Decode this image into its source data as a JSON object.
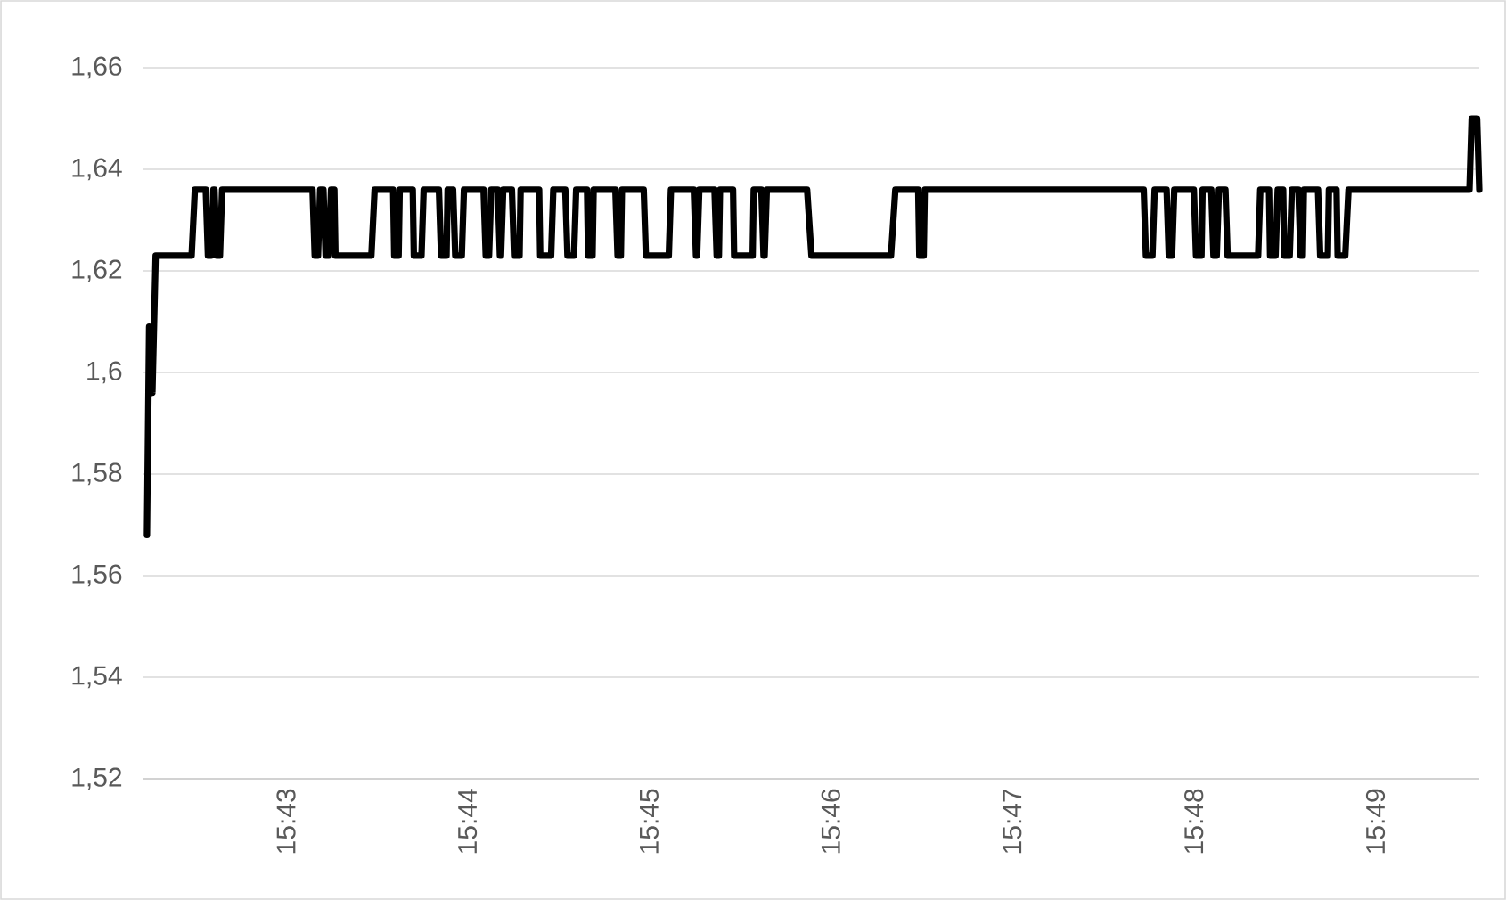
{
  "chart_data": {
    "type": "line",
    "x": [
      15.7039,
      15.7041,
      15.7044,
      15.7047,
      15.708,
      15.7083,
      15.7093,
      15.7095,
      15.7098,
      15.71,
      15.7101,
      15.7103,
      15.7106,
      15.7108,
      15.7191,
      15.7193,
      15.7196,
      15.7198,
      15.7201,
      15.7203,
      15.7206,
      15.7208,
      15.7211,
      15.7212,
      15.7245,
      15.7248,
      15.7265,
      15.7266,
      15.727,
      15.7271,
      15.7283,
      15.7284,
      15.7291,
      15.7293,
      15.7307,
      15.7309,
      15.7314,
      15.7315,
      15.732,
      15.7322,
      15.7328,
      15.733,
      15.7348,
      15.735,
      15.7353,
      15.7355,
      15.7361,
      15.7363,
      15.7364,
      15.7366,
      15.7374,
      15.7376,
      15.7381,
      15.7382,
      15.7399,
      15.74,
      15.741,
      15.7412,
      15.7423,
      15.7425,
      15.7431,
      15.7433,
      15.7443,
      15.7444,
      15.7448,
      15.7449,
      15.7469,
      15.7471,
      15.7474,
      15.7475,
      15.7495,
      15.7497,
      15.7518,
      15.752,
      15.7541,
      15.7543,
      15.7544,
      15.7546,
      15.756,
      15.7562,
      15.7564,
      15.7565,
      15.7577,
      15.7578,
      15.7595,
      15.7596,
      15.7603,
      15.7605,
      15.7606,
      15.7608,
      15.7645,
      15.7649,
      15.7722,
      15.7726,
      15.7747,
      15.7748,
      15.7752,
      15.7753,
      15.7954,
      15.7956,
      15.7962,
      15.7964,
      15.7975,
      15.7977,
      15.798,
      15.7982,
      15.8,
      15.8002,
      15.8007,
      15.8008,
      15.8016,
      15.8018,
      15.8021,
      15.8023,
      15.8029,
      15.8031,
      15.8059,
      15.8061,
      15.8069,
      15.807,
      15.8075,
      15.8077,
      15.8082,
      15.8083,
      15.8088,
      15.809,
      15.8096,
      15.8098,
      15.81,
      15.8101,
      15.8114,
      15.8116,
      15.8123,
      15.8124,
      15.8131,
      15.8132,
      15.8139,
      15.8142,
      15.8253,
      15.8255,
      15.826,
      15.8262
    ],
    "series": [
      {
        "color": "#000000",
        "values": [
          1.568,
          1.609,
          1.596,
          1.623,
          1.623,
          1.636,
          1.636,
          1.623,
          1.623,
          1.636,
          1.636,
          1.623,
          1.623,
          1.636,
          1.636,
          1.623,
          1.623,
          1.636,
          1.636,
          1.623,
          1.623,
          1.636,
          1.636,
          1.623,
          1.623,
          1.636,
          1.636,
          1.623,
          1.623,
          1.636,
          1.636,
          1.623,
          1.623,
          1.636,
          1.636,
          1.623,
          1.623,
          1.636,
          1.636,
          1.623,
          1.623,
          1.636,
          1.636,
          1.623,
          1.623,
          1.636,
          1.636,
          1.623,
          1.623,
          1.636,
          1.636,
          1.623,
          1.623,
          1.636,
          1.636,
          1.623,
          1.623,
          1.636,
          1.636,
          1.623,
          1.623,
          1.636,
          1.636,
          1.623,
          1.623,
          1.636,
          1.636,
          1.623,
          1.623,
          1.636,
          1.636,
          1.623,
          1.623,
          1.636,
          1.636,
          1.623,
          1.623,
          1.636,
          1.636,
          1.623,
          1.623,
          1.636,
          1.636,
          1.623,
          1.623,
          1.636,
          1.636,
          1.623,
          1.623,
          1.636,
          1.636,
          1.623,
          1.623,
          1.636,
          1.636,
          1.623,
          1.623,
          1.636,
          1.636,
          1.623,
          1.623,
          1.636,
          1.636,
          1.623,
          1.623,
          1.636,
          1.636,
          1.623,
          1.623,
          1.636,
          1.636,
          1.623,
          1.623,
          1.636,
          1.636,
          1.623,
          1.623,
          1.636,
          1.636,
          1.623,
          1.623,
          1.636,
          1.636,
          1.623,
          1.623,
          1.636,
          1.636,
          1.623,
          1.623,
          1.636,
          1.636,
          1.623,
          1.623,
          1.636,
          1.636,
          1.623,
          1.623,
          1.636,
          1.636,
          1.65,
          1.65,
          1.636
        ]
      }
    ],
    "xlim": [
      15.7035,
      15.8262
    ],
    "ylim": [
      1.52,
      1.66
    ],
    "xticks": [
      {
        "value": 15.71667,
        "label": "15:43"
      },
      {
        "value": 15.73333,
        "label": "15:44"
      },
      {
        "value": 15.75,
        "label": "15:45"
      },
      {
        "value": 15.76667,
        "label": "15:46"
      },
      {
        "value": 15.78333,
        "label": "15:47"
      },
      {
        "value": 15.8,
        "label": "15:48"
      },
      {
        "value": 15.81667,
        "label": "15:49"
      }
    ],
    "yticks": [
      {
        "value": 1.52,
        "label": "1,52"
      },
      {
        "value": 1.54,
        "label": "1,54"
      },
      {
        "value": 1.56,
        "label": "1,56"
      },
      {
        "value": 1.58,
        "label": "1,58"
      },
      {
        "value": 1.6,
        "label": "1,6"
      },
      {
        "value": 1.62,
        "label": "1,62"
      },
      {
        "value": 1.64,
        "label": "1,64"
      },
      {
        "value": 1.66,
        "label": "1,66"
      }
    ],
    "grid": "y",
    "line_style": "solid"
  }
}
